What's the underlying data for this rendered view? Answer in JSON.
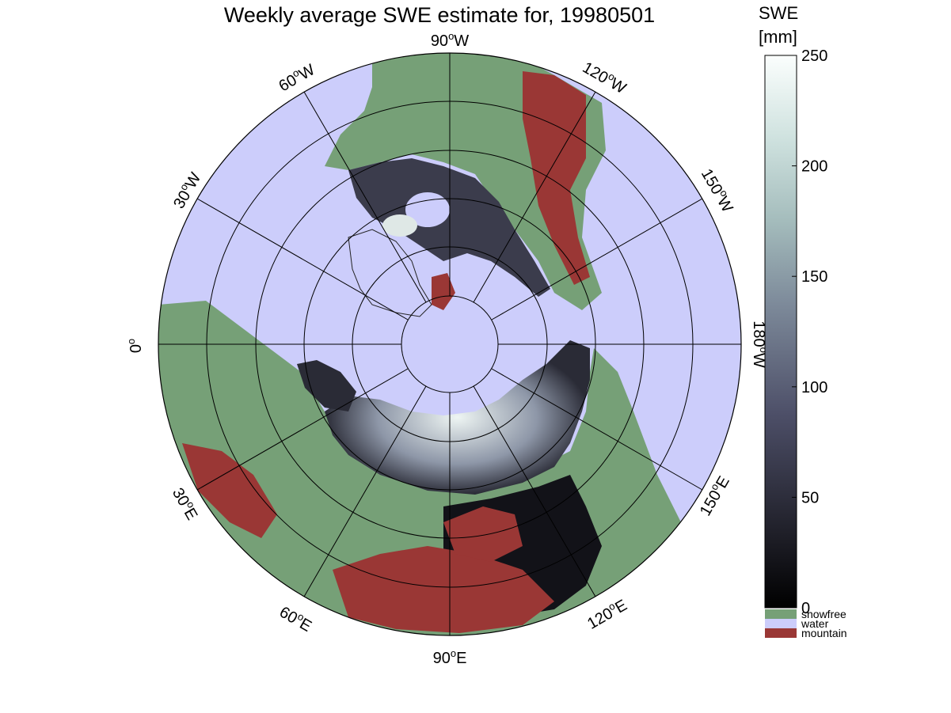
{
  "title": "Weekly average SWE estimate for, 19980501",
  "colorbar": {
    "title_line1": "SWE",
    "title_line2": "[mm]",
    "min": 0,
    "max": 250,
    "ticks": [
      0,
      50,
      100,
      150,
      200,
      250
    ],
    "categories": [
      {
        "label": "snowfree",
        "color": "#76a077"
      },
      {
        "label": "water",
        "color": "#cccdfb"
      },
      {
        "label": "mountain",
        "color": "#9a3735"
      }
    ]
  },
  "colors": {
    "water": "#cccdfb",
    "snowfree": "#76a077",
    "mountain": "#9a3735",
    "swe_low": "#0a0a0e",
    "swe_mid": "#5a5e7a",
    "swe_high": "#f6fbfa"
  },
  "longitude_labels": [
    {
      "deg": "90",
      "hemi": "W"
    },
    {
      "deg": "120",
      "hemi": "W"
    },
    {
      "deg": "150",
      "hemi": "W"
    },
    {
      "deg": "180",
      "hemi": "W"
    },
    {
      "deg": "150",
      "hemi": "E"
    },
    {
      "deg": "120",
      "hemi": "E"
    },
    {
      "deg": "90",
      "hemi": "E"
    },
    {
      "deg": "60",
      "hemi": "E"
    },
    {
      "deg": "30",
      "hemi": "E"
    },
    {
      "deg": "0",
      "hemi": ""
    },
    {
      "deg": "30",
      "hemi": "W"
    },
    {
      "deg": "60",
      "hemi": "W"
    }
  ]
}
